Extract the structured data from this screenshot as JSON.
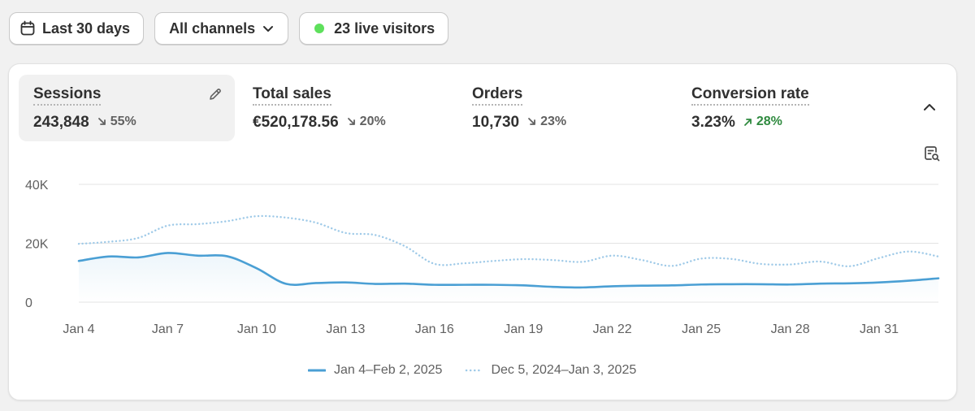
{
  "toolbar": {
    "date_range": "Last 30 days",
    "channels": "All channels",
    "live_visitors": "23 live visitors"
  },
  "metrics": [
    {
      "label": "Sessions",
      "value": "243,848",
      "delta": "55%",
      "direction": "down"
    },
    {
      "label": "Total sales",
      "value": "€520,178.56",
      "delta": "20%",
      "direction": "down"
    },
    {
      "label": "Orders",
      "value": "10,730",
      "delta": "23%",
      "direction": "down"
    },
    {
      "label": "Conversion rate",
      "value": "3.23%",
      "delta": "28%",
      "direction": "up"
    }
  ],
  "icons": {
    "edit": "pencil-icon",
    "collapse": "chevron-up-icon",
    "report": "report-search-icon",
    "calendar": "calendar-icon",
    "dropdown": "chevron-down-icon"
  },
  "colors": {
    "current": "#4a9fd4",
    "previous": "#9fcae8",
    "positive": "#2f8a3f",
    "live": "#5ee05c"
  },
  "chart_data": {
    "type": "line",
    "ylim": [
      0,
      40000
    ],
    "y_ticks": [
      {
        "value": 40000,
        "label": "40K"
      },
      {
        "value": 20000,
        "label": "20K"
      },
      {
        "value": 0,
        "label": "0"
      }
    ],
    "x_ticks": [
      {
        "index": 0,
        "label": "Jan 4"
      },
      {
        "index": 3,
        "label": "Jan 7"
      },
      {
        "index": 6,
        "label": "Jan 10"
      },
      {
        "index": 9,
        "label": "Jan 13"
      },
      {
        "index": 12,
        "label": "Jan 16"
      },
      {
        "index": 15,
        "label": "Jan 19"
      },
      {
        "index": 18,
        "label": "Jan 22"
      },
      {
        "index": 21,
        "label": "Jan 25"
      },
      {
        "index": 24,
        "label": "Jan 28"
      },
      {
        "index": 27,
        "label": "Jan 31"
      }
    ],
    "series": [
      {
        "name": "Jan 4–Feb 2, 2025",
        "style": "solid",
        "values": [
          14000,
          15500,
          15200,
          16700,
          15800,
          15600,
          11500,
          6200,
          6500,
          6700,
          6200,
          6300,
          5900,
          5900,
          5900,
          5700,
          5200,
          5000,
          5400,
          5600,
          5700,
          6000,
          6100,
          6100,
          6000,
          6300,
          6400,
          6700,
          7300,
          8100
        ]
      },
      {
        "name": "Dec 5, 2024–Jan 3, 2025",
        "style": "dotted",
        "values": [
          19800,
          20500,
          21800,
          26000,
          26500,
          27500,
          29200,
          28700,
          27000,
          23500,
          22800,
          19000,
          13000,
          13200,
          14000,
          14600,
          14300,
          13700,
          15800,
          14300,
          12300,
          14800,
          14700,
          13000,
          12800,
          13800,
          12200,
          15000,
          17200,
          15500
        ]
      }
    ]
  }
}
